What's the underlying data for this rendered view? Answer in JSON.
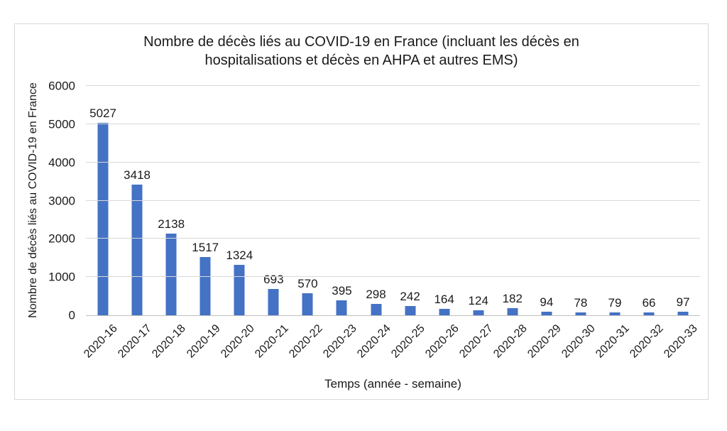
{
  "chart_data": {
    "type": "bar",
    "title": "Nombre de décès liés au COVID-19 en France (incluant les décès en hospitalisations et décès en AHPA et autres EMS)",
    "title_lines": [
      "Nombre de décès liés au COVID-19 en France (incluant les décès en",
      "hospitalisations et décès en AHPA et autres EMS)"
    ],
    "xlabel": "Temps (année - semaine)",
    "ylabel": "Nombre de décès liés au COVID-19 en France",
    "categories": [
      "2020-16",
      "2020-17",
      "2020-18",
      "2020-19",
      "2020-20",
      "2020-21",
      "2020-22",
      "2020-23",
      "2020-24",
      "2020-25",
      "2020-26",
      "2020-27",
      "2020-28",
      "2020-29",
      "2020-30",
      "2020-31",
      "2020-32",
      "2020-33"
    ],
    "values": [
      5027,
      3418,
      2138,
      1517,
      1324,
      693,
      570,
      395,
      298,
      242,
      164,
      124,
      182,
      94,
      78,
      79,
      66,
      97
    ],
    "yticks": [
      0,
      1000,
      2000,
      3000,
      4000,
      5000,
      6000
    ],
    "ylim": [
      0,
      6000
    ],
    "grid": true,
    "legend": false,
    "data_labels": true,
    "colors": {
      "bar": "#4472c4",
      "gridline": "#d9d9d9",
      "axis_line": "#bfbfbf",
      "text": "#1a1a1a",
      "frame_border": "#d9d9d9",
      "background": "#ffffff"
    }
  }
}
